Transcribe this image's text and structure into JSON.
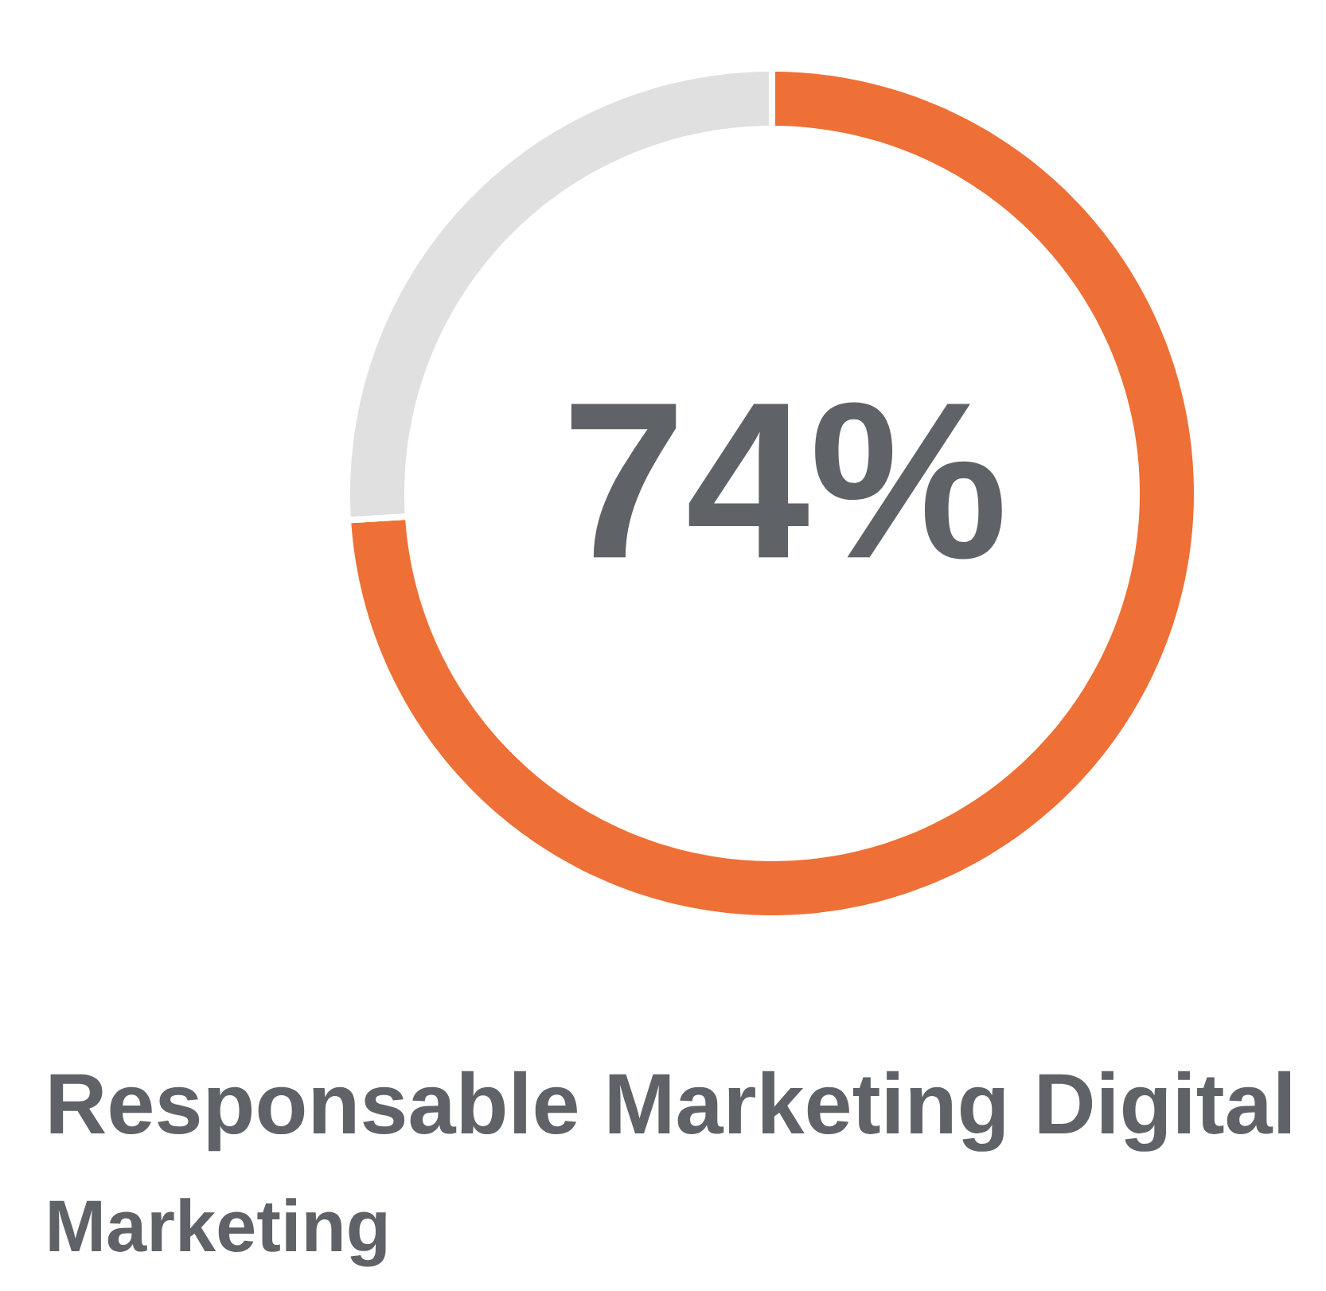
{
  "chart_data": {
    "type": "donut",
    "title": "Responsable Marketing Digital",
    "subtitle": "Marketing",
    "categories": [
      null,
      null
    ],
    "values": [
      74,
      26
    ],
    "colors": [
      "#ee7036",
      "#e0e0e0"
    ],
    "value_labels": [
      "74%",
      null
    ]
  }
}
